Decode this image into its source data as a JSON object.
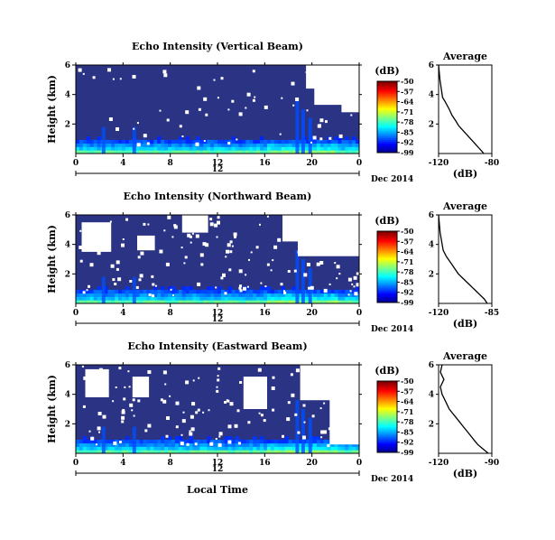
{
  "chart_data": [
    {
      "type": "heatmap",
      "title": "Echo Intensity (Vertical Beam)",
      "ylabel": "Height (km)",
      "x_ticks": [
        "0",
        "4",
        "8",
        "12",
        "16",
        "20",
        "0"
      ],
      "xlim": [
        0,
        24
      ],
      "y_ticks": [
        "2",
        "4",
        "6"
      ],
      "ylim": [
        0,
        6
      ],
      "date_label": "Dec 2014",
      "date_day": "12",
      "colorbar": {
        "unit": "(dB)",
        "ticks": [
          "-50",
          "-57",
          "-64",
          "-71",
          "-78",
          "-85",
          "-92",
          "-99"
        ],
        "range": [
          -99,
          -50
        ]
      },
      "no_data_top_km_evening": 5.0
    },
    {
      "type": "line",
      "title": "Average",
      "xlabel": "(dB)",
      "x_ticks": [
        "-120",
        "-80"
      ],
      "xlim": [
        -120,
        -80
      ],
      "y_ticks": [
        "2",
        "4",
        "6"
      ],
      "ylim": [
        0,
        6
      ],
      "series": [
        {
          "x": [
            -120,
            -119,
            -117,
            -115,
            -112,
            -110,
            -107,
            -105,
            -102,
            -99,
            -96,
            -94,
            -92,
            -90,
            -88,
            -86
          ],
          "y": [
            6.0,
            5.0,
            3.8,
            3.5,
            3.0,
            2.6,
            2.2,
            1.9,
            1.6,
            1.3,
            1.0,
            0.8,
            0.6,
            0.4,
            0.2,
            0.0
          ]
        }
      ]
    },
    {
      "type": "heatmap",
      "title": "Echo Intensity (Northward Beam)",
      "ylabel": "Height (km)",
      "x_ticks": [
        "0",
        "4",
        "8",
        "12",
        "16",
        "20",
        "0"
      ],
      "xlim": [
        0,
        24
      ],
      "y_ticks": [
        "2",
        "4",
        "6"
      ],
      "ylim": [
        0,
        6
      ],
      "date_label": "Dec 2014",
      "date_day": "12",
      "colorbar": {
        "unit": "(dB)",
        "ticks": [
          "-50",
          "-57",
          "-64",
          "-71",
          "-78",
          "-85",
          "-92",
          "-99"
        ],
        "range": [
          -99,
          -50
        ]
      }
    },
    {
      "type": "line",
      "title": "Average",
      "xlabel": "(dB)",
      "x_ticks": [
        "-120",
        "-85"
      ],
      "xlim": [
        -120,
        -85
      ],
      "y_ticks": [
        "2",
        "4",
        "6"
      ],
      "ylim": [
        0,
        6
      ],
      "series": [
        {
          "x": [
            -120,
            -119,
            -117,
            -115,
            -113,
            -111,
            -109,
            -107,
            -105,
            -103,
            -101,
            -99,
            -97,
            -95,
            -93,
            -90,
            -88
          ],
          "y": [
            6.0,
            4.8,
            3.6,
            3.2,
            2.9,
            2.6,
            2.3,
            2.0,
            1.8,
            1.6,
            1.4,
            1.2,
            1.0,
            0.8,
            0.6,
            0.3,
            0.0
          ]
        }
      ]
    },
    {
      "type": "heatmap",
      "title": "Echo Intensity (Eastward Beam)",
      "ylabel": "Height (km)",
      "x_ticks": [
        "0",
        "4",
        "8",
        "12",
        "16",
        "20",
        "0"
      ],
      "xlim": [
        0,
        24
      ],
      "y_ticks": [
        "2",
        "4",
        "6"
      ],
      "ylim": [
        0,
        6
      ],
      "date_label": "Dec 2014",
      "date_day": "12",
      "xlabel": "Local Time",
      "colorbar": {
        "unit": "(dB)",
        "ticks": [
          "-50",
          "-57",
          "-64",
          "-71",
          "-78",
          "-85",
          "-92",
          "-99"
        ],
        "range": [
          -99,
          -50
        ]
      }
    },
    {
      "type": "line",
      "title": "Average",
      "xlabel": "(dB)",
      "x_ticks": [
        "-120",
        "-90"
      ],
      "xlim": [
        -120,
        -90
      ],
      "y_ticks": [
        "2",
        "4",
        "6"
      ],
      "ylim": [
        0,
        6
      ],
      "series": [
        {
          "x": [
            -118,
            -119,
            -117,
            -119,
            -118,
            -116,
            -114,
            -112,
            -110,
            -108,
            -106,
            -104,
            -102,
            -100,
            -98,
            -96,
            -94,
            -92
          ],
          "y": [
            6.0,
            5.5,
            5.0,
            4.5,
            4.0,
            3.5,
            3.0,
            2.7,
            2.4,
            2.1,
            1.8,
            1.5,
            1.2,
            0.9,
            0.6,
            0.4,
            0.2,
            0.0
          ]
        }
      ]
    }
  ]
}
